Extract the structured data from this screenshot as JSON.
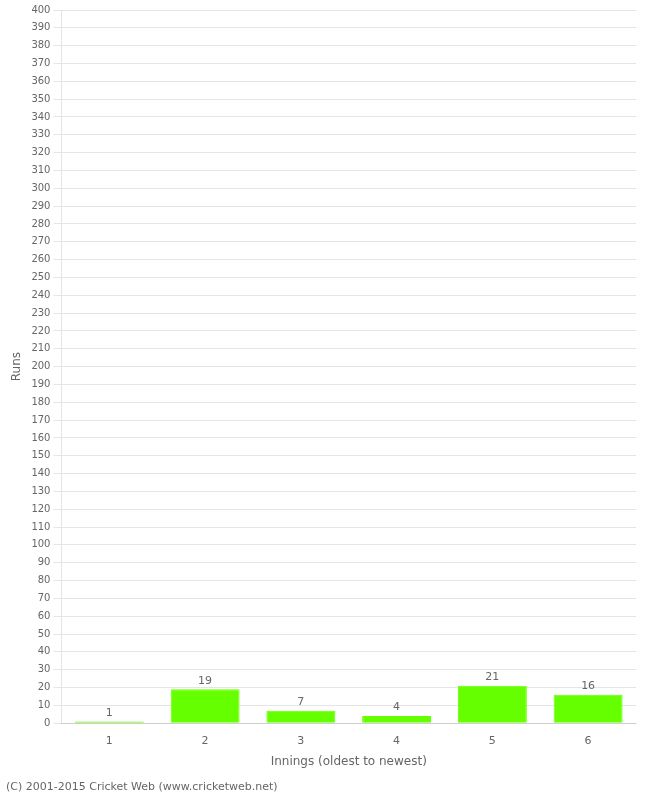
{
  "chart_data": {
    "type": "bar",
    "xlabel": "Innings (oldest to newest)",
    "ylabel": "Runs",
    "annotations": [
      "(C) 2001-2015 Cricket Web (www.cricketweb.net)"
    ],
    "categories": [
      "1",
      "2",
      "3",
      "4",
      "5",
      "6"
    ],
    "values": [
      1,
      19,
      7,
      4,
      21,
      16
    ],
    "color": "#66ff00",
    "ylim": [
      0,
      400
    ],
    "yticks": [
      0,
      10,
      20,
      30,
      40,
      50,
      60,
      70,
      80,
      90,
      100,
      110,
      120,
      130,
      140,
      150,
      160,
      170,
      180,
      190,
      200,
      210,
      220,
      230,
      240,
      250,
      260,
      270,
      280,
      290,
      300,
      310,
      320,
      330,
      340,
      350,
      360,
      370,
      380,
      390,
      400
    ],
    "grid": true,
    "data_labels": true
  }
}
